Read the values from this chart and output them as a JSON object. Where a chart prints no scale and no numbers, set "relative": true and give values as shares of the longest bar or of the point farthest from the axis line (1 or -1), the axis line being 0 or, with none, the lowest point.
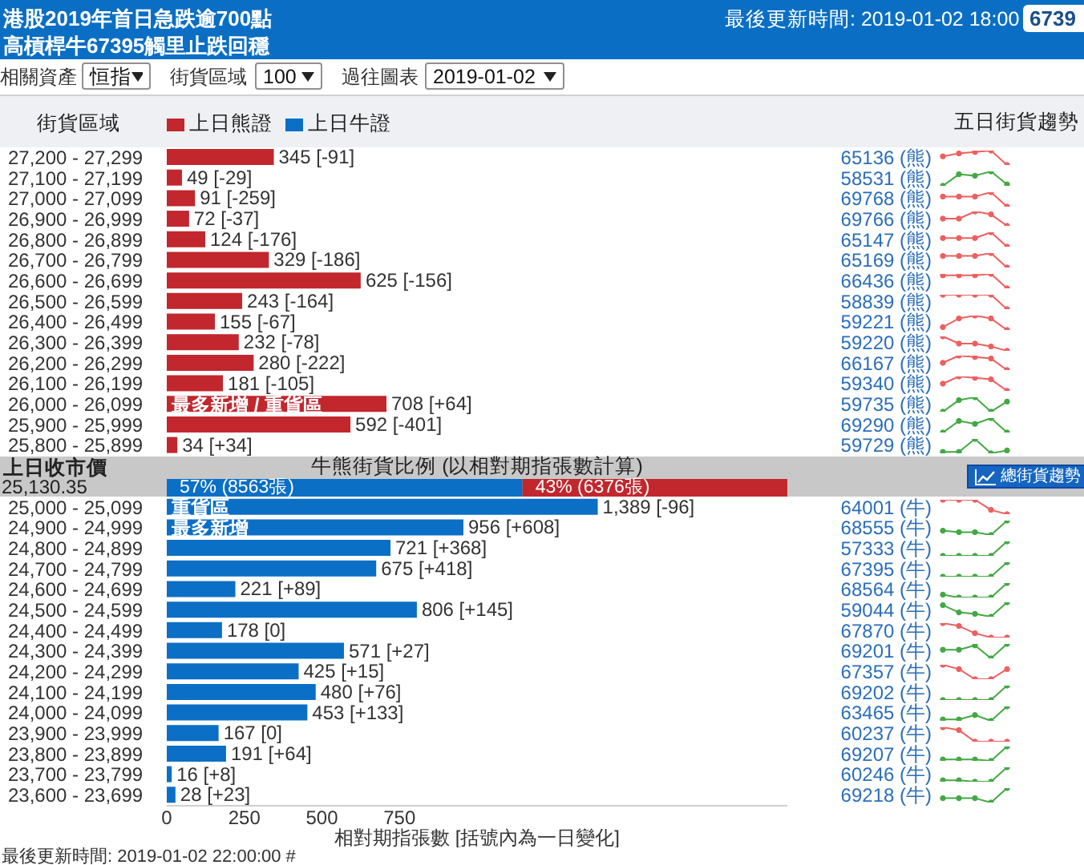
{
  "chart_data": [
    {
      "type": "bar",
      "orientation": "horizontal",
      "title": "港股2019年首日急跌逾700點",
      "subtitle": "高槓桿牛67395觸里止跌回穩",
      "ylabel": "街貨區域",
      "xlabel": "相對期指張數 [括號內為一日變化]",
      "categories": [
        "27,200 - 27,299",
        "27,100 - 27,199",
        "27,000 - 27,099",
        "26,900 - 26,999",
        "26,800 - 26,899",
        "26,700 - 26,799",
        "26,600 - 26,699",
        "26,500 - 26,599",
        "26,400 - 26,499",
        "26,300 - 26,399",
        "26,200 - 26,299",
        "26,100 - 26,199",
        "26,000 - 26,099",
        "25,900 - 25,999",
        "25,800 - 25,899",
        null,
        null,
        "25,000 - 25,099",
        "24,900 - 24,999",
        "24,800 - 24,899",
        "24,700 - 24,799",
        "24,600 - 24,699",
        "24,500 - 24,599",
        "24,400 - 24,499",
        "24,300 - 24,399",
        "24,200 - 24,299",
        "24,100 - 24,199",
        "24,000 - 24,099",
        "23,900 - 23,999",
        "23,800 - 23,899",
        "23,700 - 23,799",
        "23,600 - 23,699"
      ],
      "y2_categories": [
        "65136 (熊)",
        "58531 (熊)",
        "69768 (熊)",
        "69766 (熊)",
        "65147 (熊)",
        "65169 (熊)",
        "66436 (熊)",
        "58839 (熊)",
        "59221 (熊)",
        "59220 (熊)",
        "66167 (熊)",
        "59340 (熊)",
        "59735 (熊)",
        "69290 (熊)",
        "59729 (熊)",
        null,
        null,
        "64001 (牛)",
        "68555 (牛)",
        "57333 (牛)",
        "67395 (牛)",
        "68564 (牛)",
        "59044 (牛)",
        "67870 (牛)",
        "69201 (牛)",
        "67357 (牛)",
        "69202 (牛)",
        "63465 (牛)",
        "60237 (牛)",
        "69207 (牛)",
        "60246 (牛)",
        "69218 (牛)"
      ],
      "series": [
        {
          "name": "上日熊證",
          "color": "#c1272d",
          "values": [
            345,
            49,
            91,
            72,
            124,
            329,
            625,
            243,
            155,
            232,
            280,
            181,
            708,
            592,
            34,
            null,
            null,
            null,
            null,
            null,
            null,
            null,
            null,
            null,
            null,
            null,
            null,
            null,
            null,
            null,
            null,
            null
          ],
          "value_labels": [
            "345 [-91]",
            "49 [-29]",
            "91 [-259]",
            "72 [-37]",
            "124 [-176]",
            "329 [-186]",
            "625 [-156]",
            "243 [-164]",
            "155 [-67]",
            "232 [-78]",
            "280 [-222]",
            "181 [-105]",
            "708 [+64]",
            "592 [-401]",
            "34 [+34]",
            null,
            null,
            null,
            null,
            null,
            null,
            null,
            null,
            null,
            null,
            null,
            null,
            null,
            null,
            null,
            null,
            null
          ]
        },
        {
          "name": "上日牛證",
          "color": "#0b6fc6",
          "values": [
            null,
            null,
            null,
            null,
            null,
            null,
            null,
            null,
            null,
            null,
            null,
            null,
            null,
            null,
            null,
            null,
            null,
            1389,
            956,
            721,
            675,
            221,
            806,
            178,
            571,
            425,
            480,
            453,
            167,
            191,
            16,
            28
          ],
          "value_labels": [
            null,
            null,
            null,
            null,
            null,
            null,
            null,
            null,
            null,
            null,
            null,
            null,
            null,
            null,
            null,
            null,
            null,
            "1,389 [-96]",
            "956 [+608]",
            "721 [+368]",
            "675 [+418]",
            "221 [+89]",
            "806 [+145]",
            "178 [0]",
            "571 [+27]",
            "425 [+15]",
            "480 [+76]",
            "453 [+133]",
            "167 [0]",
            "191 [+64]",
            "16 [+8]",
            "28 [+23]"
          ]
        }
      ],
      "xlim": [
        0,
        2000
      ],
      "xticks": [
        0,
        250,
        500,
        750
      ],
      "legend": "top left",
      "annotations": [
        "最後更新時間: 2019-01-02 18:00",
        "6739",
        "相關資產",
        "恒指",
        "街貨區域",
        "100",
        "過往圖表",
        "2019-01-02",
        "五日街貨趨勢",
        "最後更新時間: 2019-01-02 22:00:00 #",
        {
          "text": "最多新增 / 重貨區",
          "y": "26,000 - 26,099"
        },
        {
          "text": "重貨區",
          "y": "25,000 - 25,099"
        },
        {
          "text": "最多新增",
          "y": "24,900 - 24,999"
        }
      ]
    },
    {
      "type": "bar",
      "orientation": "horizontal",
      "stacked": true,
      "title": "牛熊街貨比例 (以相對期指張數計算)",
      "categories": [
        null
      ],
      "series": [
        {
          "color": "#0b6fc6",
          "values": [
            8563
          ],
          "value_labels": [
            "57% (8563張)"
          ]
        },
        {
          "color": "#c1272d",
          "values": [
            6376
          ],
          "value_labels": [
            "43% (6376張)"
          ]
        }
      ],
      "tick_labels": false,
      "annotations": [
        "上日收市價",
        "25,130.35",
        "總街貨趨勢"
      ]
    },
    {
      "type": "line",
      "relative": true,
      "categories": [
        null,
        null,
        null,
        null,
        null
      ],
      "series": [
        {
          "color": "#ee5f5f",
          "values": [
            0.6,
            0.8,
            0.9,
            1,
            0
          ]
        }
      ],
      "marker": "circle"
    },
    {
      "type": "line",
      "relative": true,
      "categories": [
        null,
        null,
        null,
        null,
        null
      ],
      "series": [
        {
          "color": "#43a843",
          "values": [
            0,
            0.8,
            0.7,
            1,
            0.1
          ]
        }
      ],
      "marker": "circle"
    },
    {
      "type": "line",
      "relative": true,
      "categories": [
        null,
        null,
        null,
        null,
        null
      ],
      "series": [
        {
          "color": "#ee5f5f",
          "values": [
            0.7,
            0.7,
            0.7,
            1,
            0
          ]
        }
      ],
      "marker": "circle"
    },
    {
      "type": "line",
      "relative": true,
      "categories": [
        null,
        null,
        null,
        null,
        null
      ],
      "series": [
        {
          "color": "#ee5f5f",
          "values": [
            0.5,
            0.5,
            1,
            0.8,
            0
          ]
        }
      ],
      "marker": "circle"
    },
    {
      "type": "line",
      "relative": true,
      "categories": [
        null,
        null,
        null,
        null,
        null
      ],
      "series": [
        {
          "color": "#ee5f5f",
          "values": [
            0.6,
            0.6,
            0.6,
            1,
            0
          ]
        }
      ],
      "marker": "circle"
    },
    {
      "type": "line",
      "relative": true,
      "categories": [
        null,
        null,
        null,
        null,
        null
      ],
      "series": [
        {
          "color": "#ee5f5f",
          "values": [
            0.8,
            0.8,
            0.8,
            1,
            0
          ]
        }
      ],
      "marker": "circle"
    },
    {
      "type": "line",
      "relative": true,
      "categories": [
        null,
        null,
        null,
        null,
        null
      ],
      "series": [
        {
          "color": "#ee5f5f",
          "values": [
            0.9,
            0.9,
            0.9,
            1,
            0
          ]
        }
      ],
      "marker": "circle"
    },
    {
      "type": "line",
      "relative": true,
      "categories": [
        null,
        null,
        null,
        null,
        null
      ],
      "series": [
        {
          "color": "#ee5f5f",
          "values": [
            1,
            1,
            1,
            1,
            0
          ]
        }
      ],
      "marker": "circle"
    },
    {
      "type": "line",
      "relative": true,
      "categories": [
        null,
        null,
        null,
        null,
        null
      ],
      "series": [
        {
          "color": "#ee5f5f",
          "values": [
            0.2,
            0.8,
            1,
            0.8,
            0
          ]
        }
      ],
      "marker": "circle"
    },
    {
      "type": "line",
      "relative": true,
      "categories": [
        null,
        null,
        null,
        null,
        null
      ],
      "series": [
        {
          "color": "#ee5f5f",
          "values": [
            1,
            0.5,
            0.5,
            0.3,
            0
          ]
        }
      ],
      "marker": "circle"
    },
    {
      "type": "line",
      "relative": true,
      "categories": [
        null,
        null,
        null,
        null,
        null
      ],
      "series": [
        {
          "color": "#ee5f5f",
          "values": [
            0.5,
            1,
            0.9,
            0.8,
            0
          ]
        }
      ],
      "marker": "circle"
    },
    {
      "type": "line",
      "relative": true,
      "categories": [
        null,
        null,
        null,
        null,
        null
      ],
      "series": [
        {
          "color": "#ee5f5f",
          "values": [
            0.5,
            1,
            0.9,
            0.8,
            0
          ]
        }
      ],
      "marker": "circle"
    },
    {
      "type": "line",
      "relative": true,
      "categories": [
        null,
        null,
        null,
        null,
        null
      ],
      "series": [
        {
          "color": "#43a843",
          "values": [
            0,
            0.8,
            1,
            0,
            0.7
          ]
        }
      ],
      "marker": "circle"
    },
    {
      "type": "line",
      "relative": true,
      "categories": [
        null,
        null,
        null,
        null,
        null
      ],
      "series": [
        {
          "color": "#43a843",
          "values": [
            0,
            0.8,
            0.6,
            1,
            0
          ]
        }
      ],
      "marker": "circle"
    },
    {
      "type": "line",
      "relative": true,
      "categories": [
        null,
        null,
        null,
        null,
        null
      ],
      "series": [
        {
          "color": "#43a843",
          "values": [
            0.1,
            0.1,
            1,
            0,
            0.2
          ]
        }
      ],
      "marker": "circle"
    },
    {
      "type": "line",
      "relative": true,
      "categories": [
        null,
        null,
        null,
        null,
        null
      ],
      "series": [
        {
          "color": "#ee5f5f",
          "values": [
            1,
            1,
            1,
            0.3,
            0
          ]
        }
      ],
      "marker": "circle"
    },
    {
      "type": "line",
      "relative": true,
      "categories": [
        null,
        null,
        null,
        null,
        null
      ],
      "series": [
        {
          "color": "#43a843",
          "values": [
            0.3,
            0.2,
            0.2,
            0,
            1
          ]
        }
      ],
      "marker": "circle"
    },
    {
      "type": "line",
      "relative": true,
      "categories": [
        null,
        null,
        null,
        null,
        null
      ],
      "series": [
        {
          "color": "#43a843",
          "values": [
            0,
            0,
            0,
            0,
            1
          ]
        }
      ],
      "marker": "circle"
    },
    {
      "type": "line",
      "relative": true,
      "categories": [
        null,
        null,
        null,
        null,
        null
      ],
      "series": [
        {
          "color": "#43a843",
          "values": [
            0,
            0,
            0,
            0,
            1
          ]
        }
      ],
      "marker": "circle"
    },
    {
      "type": "line",
      "relative": true,
      "categories": [
        null,
        null,
        null,
        null,
        null
      ],
      "series": [
        {
          "color": "#43a843",
          "values": [
            0.2,
            0,
            0,
            0,
            1
          ]
        }
      ],
      "marker": "circle"
    },
    {
      "type": "line",
      "relative": true,
      "categories": [
        null,
        null,
        null,
        null,
        null
      ],
      "series": [
        {
          "color": "#43a843",
          "values": [
            0.8,
            0.3,
            0.2,
            0,
            1
          ]
        }
      ],
      "marker": "circle"
    },
    {
      "type": "line",
      "relative": true,
      "categories": [
        null,
        null,
        null,
        null,
        null
      ],
      "series": [
        {
          "color": "#ee5f5f",
          "values": [
            1,
            0.8,
            0.3,
            0,
            0
          ]
        }
      ],
      "marker": "circle"
    },
    {
      "type": "line",
      "relative": true,
      "categories": [
        null,
        null,
        null,
        null,
        null
      ],
      "series": [
        {
          "color": "#43a843",
          "values": [
            0.6,
            0.6,
            0.9,
            0,
            1
          ]
        }
      ],
      "marker": "circle"
    },
    {
      "type": "line",
      "relative": true,
      "categories": [
        null,
        null,
        null,
        null,
        null
      ],
      "series": [
        {
          "color": "#ee5f5f",
          "values": [
            1,
            0.7,
            0,
            0,
            0.7
          ]
        }
      ],
      "marker": "circle"
    },
    {
      "type": "line",
      "relative": true,
      "categories": [
        null,
        null,
        null,
        null,
        null
      ],
      "series": [
        {
          "color": "#43a843",
          "values": [
            0,
            0,
            0,
            0,
            1
          ]
        }
      ],
      "marker": "circle"
    },
    {
      "type": "line",
      "relative": true,
      "categories": [
        null,
        null,
        null,
        null,
        null
      ],
      "series": [
        {
          "color": "#43a843",
          "values": [
            0.1,
            0.1,
            0.4,
            0,
            1
          ]
        }
      ],
      "marker": "circle"
    },
    {
      "type": "line",
      "relative": true,
      "categories": [
        null,
        null,
        null,
        null,
        null
      ],
      "series": [
        {
          "color": "#ee5f5f",
          "values": [
            1,
            0.8,
            0,
            0,
            0
          ]
        }
      ],
      "marker": "circle"
    },
    {
      "type": "line",
      "relative": true,
      "categories": [
        null,
        null,
        null,
        null,
        null
      ],
      "series": [
        {
          "color": "#43a843",
          "values": [
            0.1,
            0.1,
            0.1,
            0,
            1
          ]
        }
      ],
      "marker": "circle"
    },
    {
      "type": "line",
      "relative": true,
      "categories": [
        null,
        null,
        null,
        null,
        null
      ],
      "series": [
        {
          "color": "#43a843",
          "values": [
            0.1,
            0.1,
            0,
            0,
            1
          ]
        }
      ],
      "marker": "circle"
    },
    {
      "type": "line",
      "relative": true,
      "categories": [
        null,
        null,
        null,
        null,
        null
      ],
      "series": [
        {
          "color": "#43a843",
          "values": [
            0.3,
            0.3,
            0.3,
            0,
            1
          ]
        }
      ],
      "marker": "circle"
    }
  ]
}
